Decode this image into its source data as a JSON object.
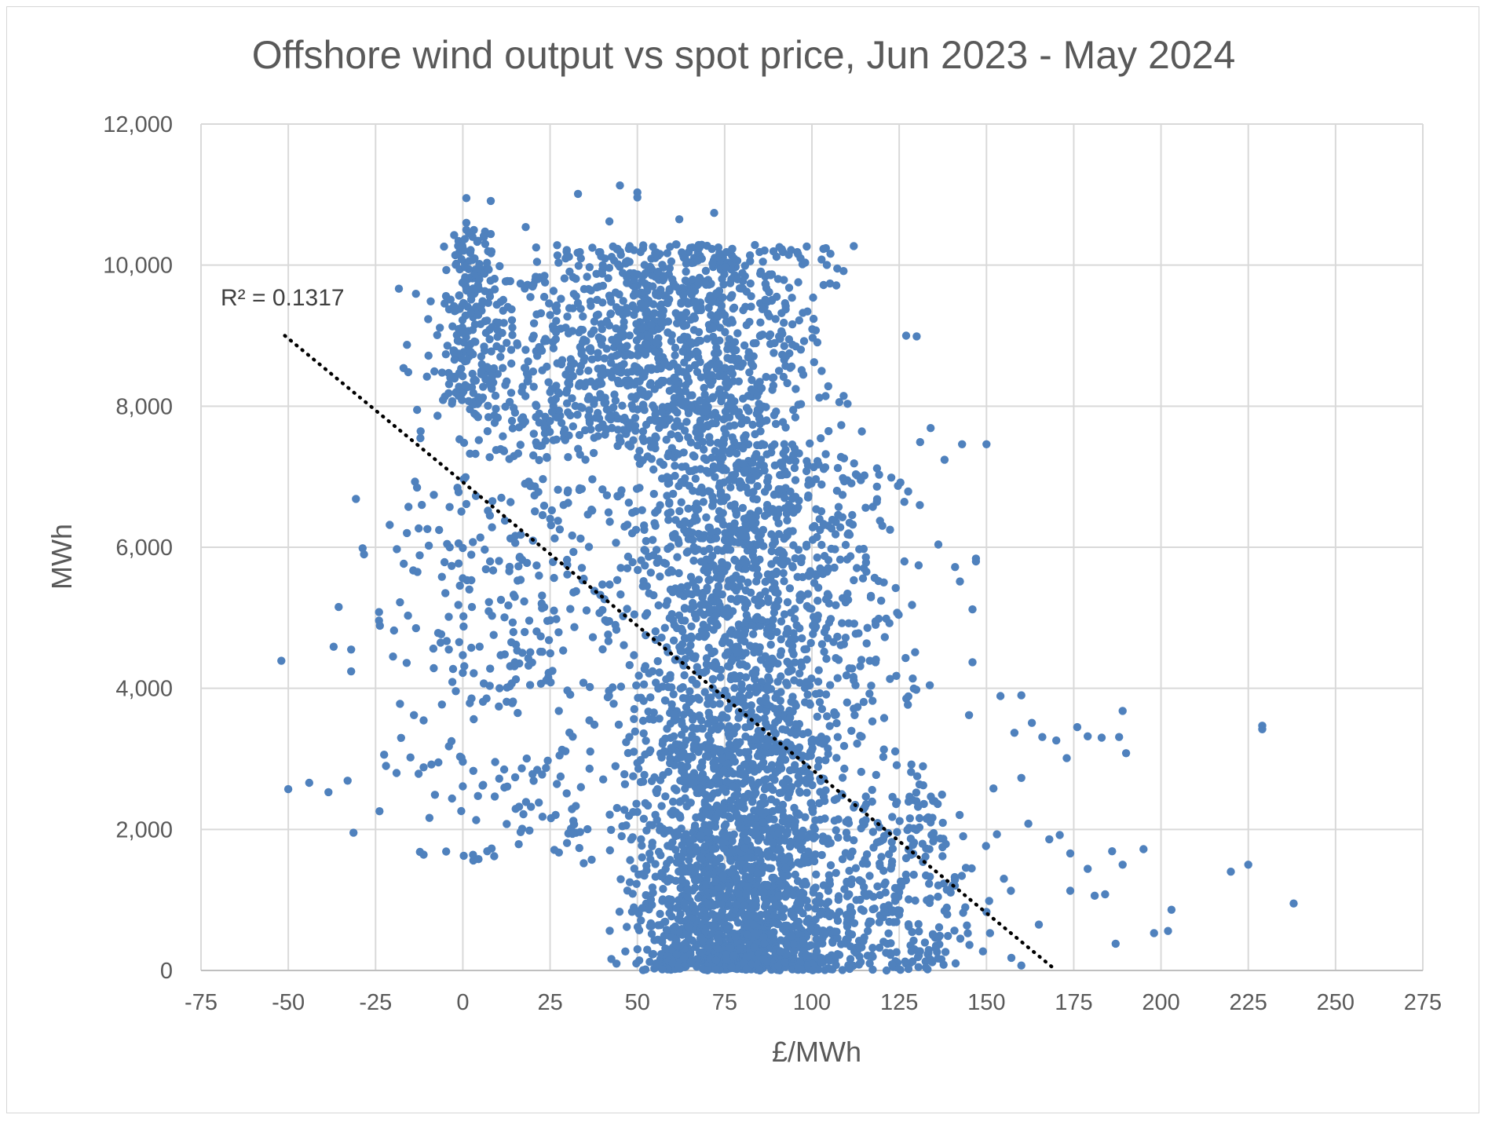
{
  "chart_data": {
    "type": "scatter",
    "title": "Offshore wind output vs spot price, Jun 2023 - May 2024",
    "xlabel": "£/MWh",
    "ylabel": "MWh",
    "xlim": [
      -75,
      275
    ],
    "ylim": [
      0,
      12000
    ],
    "x_ticks": [
      "-75",
      "-50",
      "-25",
      "0",
      "25",
      "50",
      "75",
      "100",
      "125",
      "150",
      "175",
      "200",
      "225",
      "250",
      "275"
    ],
    "y_ticks": [
      "0",
      "2,000",
      "4,000",
      "6,000",
      "8,000",
      "10,000",
      "12,000"
    ],
    "grid": true,
    "legend": "none",
    "marker_color": "#4f81bd",
    "trendline": {
      "style": "dotted",
      "color": "#000000",
      "x": [
        -51,
        170
      ],
      "y": [
        9000,
        0
      ],
      "r_squared_label": "R² = 0.1317"
    },
    "series": [
      {
        "points": [
          [
            -52,
            4390
          ],
          [
            -50,
            2570
          ],
          [
            -44,
            2660
          ],
          [
            -37,
            4590
          ],
          [
            -33,
            2690
          ],
          [
            -32,
            4550
          ],
          [
            -32,
            4240
          ],
          [
            -24,
            4960
          ],
          [
            -24,
            5080
          ],
          [
            -22,
            2900
          ],
          [
            -20,
            4450
          ],
          [
            -19,
            2800
          ],
          [
            -18,
            3780
          ],
          [
            -18,
            5220
          ],
          [
            -17,
            8540
          ],
          [
            -16,
            8870
          ],
          [
            -15,
            3020
          ],
          [
            -14,
            3620
          ],
          [
            -13,
            5650
          ],
          [
            -9,
            2920
          ],
          [
            -8,
            2490
          ],
          [
            -7,
            2950
          ],
          [
            -6,
            3770
          ],
          [
            -6,
            5580
          ],
          [
            -5,
            5350
          ],
          [
            -4,
            4550
          ],
          [
            -3,
            4090
          ],
          [
            -2,
            3960
          ],
          [
            -2,
            8190
          ],
          [
            0,
            4470
          ],
          [
            0,
            4220
          ],
          [
            0,
            2960
          ],
          [
            0,
            2610
          ],
          [
            0,
            5990
          ],
          [
            0,
            5560
          ],
          [
            1,
            9680
          ],
          [
            1,
            10950
          ],
          [
            1,
            10600
          ],
          [
            1,
            10500
          ],
          [
            2,
            3790
          ],
          [
            3,
            2830
          ],
          [
            3,
            1560
          ],
          [
            6,
            4070
          ],
          [
            7,
            1690
          ],
          [
            9,
            1620
          ],
          [
            8,
            10910
          ],
          [
            8,
            10440
          ],
          [
            14,
            4070
          ],
          [
            15,
            2740
          ],
          [
            16,
            1790
          ],
          [
            18,
            10540
          ],
          [
            21,
            10250
          ],
          [
            21,
            8780
          ],
          [
            28,
            2750
          ],
          [
            31,
            2010
          ],
          [
            33,
            11010
          ],
          [
            40,
            9470
          ],
          [
            42,
            10620
          ],
          [
            45,
            11130
          ],
          [
            50,
            10960
          ],
          [
            50,
            11030
          ],
          [
            62,
            10650
          ],
          [
            72,
            10740
          ],
          [
            104,
            10240
          ],
          [
            112,
            10270
          ],
          [
            127,
            9000
          ],
          [
            130,
            8990
          ],
          [
            131,
            7490
          ],
          [
            134,
            7690
          ],
          [
            138,
            7240
          ],
          [
            143,
            7460
          ],
          [
            150,
            7460
          ],
          [
            147,
            5840
          ],
          [
            147,
            5800
          ],
          [
            146,
            5120
          ],
          [
            146,
            4370
          ],
          [
            145,
            3620
          ],
          [
            141,
            5720
          ],
          [
            154,
            3890
          ],
          [
            158,
            3370
          ],
          [
            160,
            3900
          ],
          [
            163,
            3510
          ],
          [
            166,
            3310
          ],
          [
            170,
            3260
          ],
          [
            173,
            3010
          ],
          [
            176,
            3450
          ],
          [
            160,
            2730
          ],
          [
            174,
            1660
          ],
          [
            174,
            1130
          ],
          [
            179,
            1440
          ],
          [
            181,
            1060
          ],
          [
            184,
            1080
          ],
          [
            186,
            1690
          ],
          [
            188,
            3310
          ],
          [
            189,
            3680
          ],
          [
            190,
            3080
          ],
          [
            189,
            1500
          ],
          [
            195,
            1720
          ],
          [
            198,
            530
          ],
          [
            202,
            560
          ],
          [
            203,
            860
          ],
          [
            187,
            380
          ],
          [
            220,
            1400
          ],
          [
            225,
            1500
          ],
          [
            229,
            3470
          ],
          [
            229,
            3420
          ],
          [
            238,
            950
          ],
          [
            153,
            1930
          ],
          [
            160,
            70
          ],
          [
            165,
            650
          ],
          [
            168,
            1860
          ],
          [
            171,
            1920
          ],
          [
            179,
            3320
          ],
          [
            183,
            3300
          ],
          [
            152,
            2580
          ],
          [
            162,
            2080
          ],
          [
            155,
            1300
          ],
          [
            157,
            1130
          ],
          [
            150,
            830
          ],
          [
            149,
            270
          ]
        ]
      }
    ]
  }
}
